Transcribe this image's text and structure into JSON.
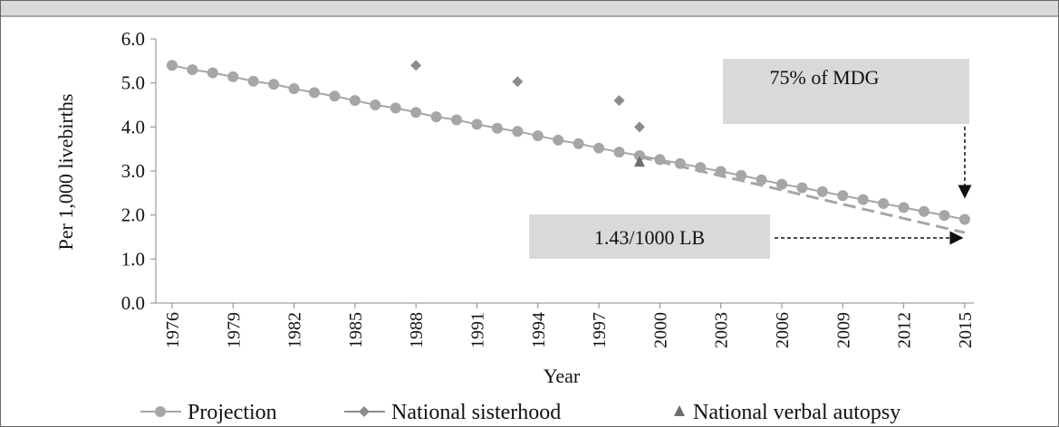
{
  "chart_data": {
    "type": "line",
    "xlabel": "Year",
    "ylabel": "Per 1,000 livebirths",
    "xlim": [
      1975.2,
      2015.45
    ],
    "ylim": [
      0,
      6
    ],
    "xticks": [
      1976,
      1979,
      1982,
      1985,
      1988,
      1991,
      1994,
      1997,
      2000,
      2003,
      2006,
      2009,
      2012,
      2015
    ],
    "yticks": [
      {
        "value": 0,
        "label": "0.0"
      },
      {
        "value": 1,
        "label": "1.0"
      },
      {
        "value": 2,
        "label": "2.0"
      },
      {
        "value": 3,
        "label": "3.0"
      },
      {
        "value": 4,
        "label": "4.0"
      },
      {
        "value": 5,
        "label": "5.0"
      },
      {
        "value": 6,
        "label": "6.0"
      }
    ],
    "series": [
      {
        "name": "Projection",
        "color": "#a6a6a6",
        "marker": "circle",
        "line": true,
        "x": [
          1976,
          1977,
          1978,
          1979,
          1980,
          1981,
          1982,
          1983,
          1984,
          1985,
          1986,
          1987,
          1988,
          1989,
          1990,
          1991,
          1992,
          1993,
          1994,
          1995,
          1996,
          1997,
          1998,
          1999,
          2000,
          2001,
          2002,
          2003,
          2004,
          2005,
          2006,
          2007,
          2008,
          2009,
          2010,
          2011,
          2012,
          2013,
          2014,
          2015
        ],
        "values": [
          5.4,
          5.3,
          5.23,
          5.14,
          5.04,
          4.97,
          4.87,
          4.78,
          4.7,
          4.6,
          4.5,
          4.43,
          4.33,
          4.23,
          4.16,
          4.06,
          3.97,
          3.9,
          3.8,
          3.7,
          3.62,
          3.52,
          3.43,
          3.35,
          3.26,
          3.17,
          3.08,
          2.99,
          2.9,
          2.8,
          2.7,
          2.62,
          2.53,
          2.44,
          2.35,
          2.26,
          2.17,
          2.08,
          1.99,
          1.9
        ]
      },
      {
        "name": "National sisterhood",
        "color": "#8c8c8c",
        "marker": "diamond",
        "line": false,
        "x": [
          1988,
          1993,
          1998,
          1999
        ],
        "values": [
          5.4,
          5.03,
          4.6,
          4.0
        ]
      },
      {
        "name": "National verbal autopsy",
        "color": "#6e6e6e",
        "marker": "triangle",
        "line": false,
        "x": [
          1999
        ],
        "values": [
          3.2
        ]
      }
    ],
    "trend": {
      "color": "#a6a6a6",
      "x": [
        1999,
        2015
      ],
      "values": [
        3.32,
        1.6
      ]
    },
    "annotations": [
      "75% of MDG",
      "1.43/1000 LB"
    ]
  }
}
